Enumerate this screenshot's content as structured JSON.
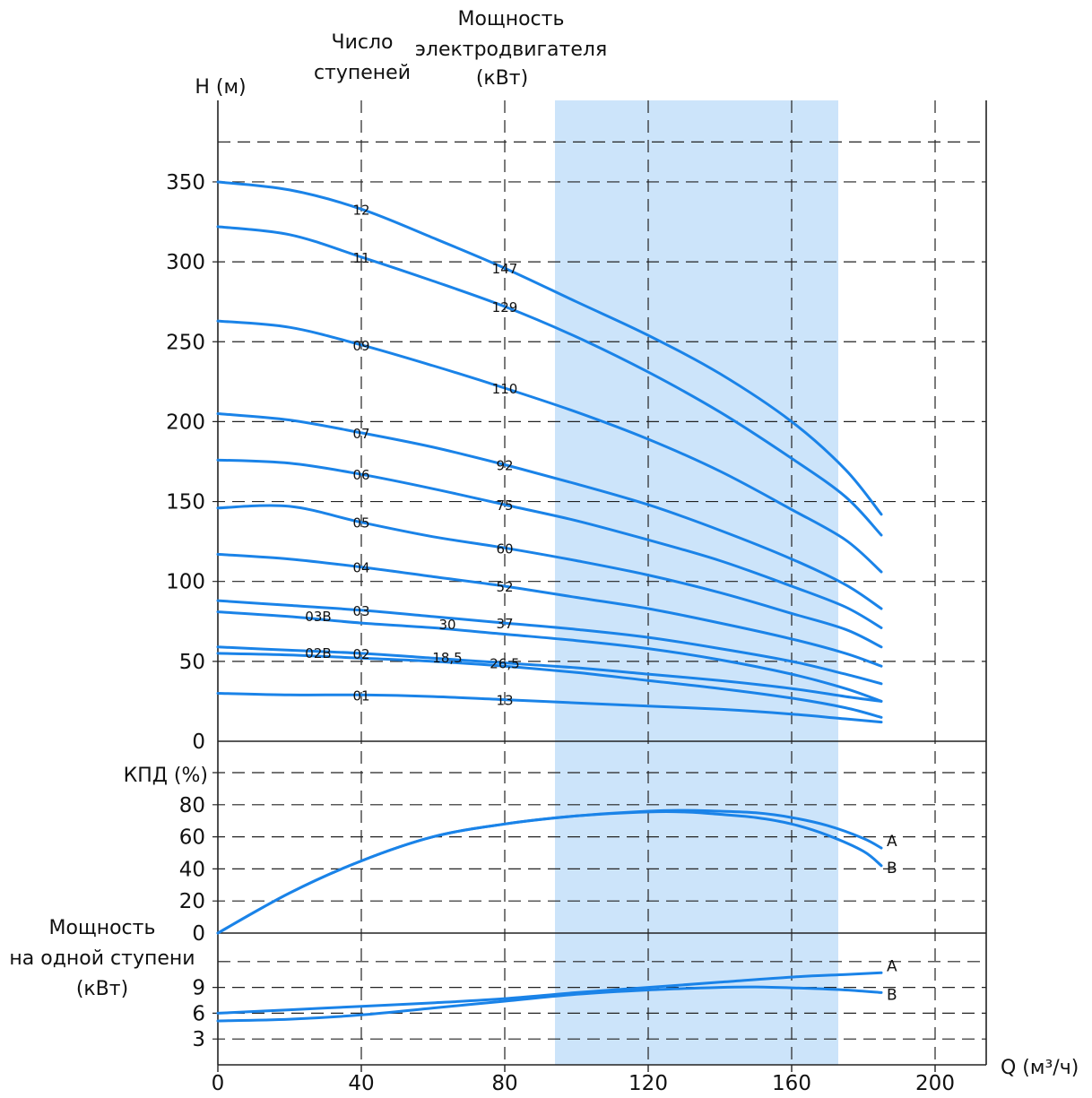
{
  "chart_data": {
    "type": "line",
    "header": {
      "stages_title": [
        "Число",
        "ступеней"
      ],
      "power_title": [
        "Мощность",
        "электродвигателя",
        "(кВт)"
      ]
    },
    "x_axis": {
      "label": "Q (м³/ч)",
      "range": [
        0,
        215
      ],
      "ticks": [
        0,
        40,
        80,
        120,
        160,
        200
      ],
      "tick_labels": [
        "0",
        "40",
        "80",
        "120",
        "160",
        "200"
      ]
    },
    "recommended_range": [
      94,
      173
    ],
    "colors": {
      "curve": "#1a83e8",
      "band": "#cce4fa"
    },
    "panels": [
      {
        "id": "head",
        "ylabel": "H (м)",
        "yrange": [
          0,
          400
        ],
        "ticks": [
          0,
          50,
          100,
          150,
          200,
          250,
          300,
          350
        ],
        "tick_labels": [
          "0",
          "50",
          "100",
          "150",
          "200",
          "250",
          "300",
          "350"
        ],
        "series": [
          {
            "stages": "12",
            "power": "147",
            "points": [
              [
                0,
                350
              ],
              [
                20,
                345
              ],
              [
                40,
                333
              ],
              [
                60,
                315
              ],
              [
                80,
                296
              ],
              [
                100,
                275
              ],
              [
                120,
                254
              ],
              [
                140,
                230
              ],
              [
                160,
                200
              ],
              [
                175,
                170
              ],
              [
                185,
                142
              ]
            ]
          },
          {
            "stages": "11",
            "power": "129",
            "points": [
              [
                0,
                322
              ],
              [
                20,
                317
              ],
              [
                40,
                303
              ],
              [
                60,
                288
              ],
              [
                80,
                272
              ],
              [
                100,
                253
              ],
              [
                120,
                231
              ],
              [
                140,
                206
              ],
              [
                160,
                177
              ],
              [
                175,
                153
              ],
              [
                185,
                129
              ]
            ]
          },
          {
            "stages": "09",
            "power": "110",
            "points": [
              [
                0,
                263
              ],
              [
                20,
                259
              ],
              [
                40,
                248
              ],
              [
                60,
                235
              ],
              [
                80,
                221
              ],
              [
                100,
                206
              ],
              [
                120,
                189
              ],
              [
                140,
                169
              ],
              [
                160,
                145
              ],
              [
                175,
                126
              ],
              [
                185,
                106
              ]
            ]
          },
          {
            "stages": "07",
            "power": "92",
            "points": [
              [
                0,
                205
              ],
              [
                20,
                201
              ],
              [
                40,
                193
              ],
              [
                60,
                184
              ],
              [
                80,
                173
              ],
              [
                100,
                161
              ],
              [
                120,
                148
              ],
              [
                140,
                132
              ],
              [
                160,
                114
              ],
              [
                175,
                98
              ],
              [
                185,
                83
              ]
            ]
          },
          {
            "stages": "06",
            "power": "75",
            "points": [
              [
                0,
                176
              ],
              [
                20,
                174
              ],
              [
                40,
                167
              ],
              [
                60,
                158
              ],
              [
                80,
                148
              ],
              [
                100,
                138
              ],
              [
                120,
                126
              ],
              [
                140,
                113
              ],
              [
                160,
                97
              ],
              [
                175,
                84
              ],
              [
                185,
                71
              ]
            ]
          },
          {
            "stages": "05",
            "power": "60",
            "points": [
              [
                0,
                146
              ],
              [
                20,
                147
              ],
              [
                40,
                137
              ],
              [
                60,
                128
              ],
              [
                80,
                121
              ],
              [
                100,
                113
              ],
              [
                120,
                104
              ],
              [
                140,
                93
              ],
              [
                160,
                80
              ],
              [
                175,
                70
              ],
              [
                185,
                59
              ]
            ]
          },
          {
            "stages": "04",
            "power": "52",
            "points": [
              [
                0,
                117
              ],
              [
                20,
                114
              ],
              [
                40,
                109
              ],
              [
                60,
                103
              ],
              [
                80,
                97
              ],
              [
                100,
                90
              ],
              [
                120,
                83
              ],
              [
                140,
                74
              ],
              [
                160,
                64
              ],
              [
                175,
                55
              ],
              [
                185,
                47
              ]
            ]
          },
          {
            "stages": "03",
            "power": "37",
            "points": [
              [
                0,
                88
              ],
              [
                20,
                85
              ],
              [
                40,
                82
              ],
              [
                60,
                78
              ],
              [
                80,
                74
              ],
              [
                100,
                70
              ],
              [
                120,
                65
              ],
              [
                140,
                58
              ],
              [
                160,
                50
              ],
              [
                175,
                42
              ],
              [
                185,
                36
              ]
            ]
          },
          {
            "stages": "03В",
            "power": "30",
            "points": [
              [
                0,
                81
              ],
              [
                20,
                78
              ],
              [
                40,
                74
              ],
              [
                60,
                71
              ],
              [
                80,
                67
              ],
              [
                100,
                63
              ],
              [
                120,
                58
              ],
              [
                140,
                51
              ],
              [
                160,
                42
              ],
              [
                175,
                33
              ],
              [
                185,
                25
              ]
            ]
          },
          {
            "stages": "02",
            "power": "26,5",
            "points": [
              [
                0,
                59
              ],
              [
                20,
                57
              ],
              [
                40,
                55
              ],
              [
                60,
                52
              ],
              [
                80,
                49
              ],
              [
                100,
                46
              ],
              [
                120,
                42
              ],
              [
                140,
                38
              ],
              [
                160,
                33
              ],
              [
                175,
                28
              ],
              [
                185,
                25
              ]
            ]
          },
          {
            "stages": "02В",
            "power": "18,5",
            "points": [
              [
                0,
                55
              ],
              [
                20,
                54
              ],
              [
                40,
                52
              ],
              [
                60,
                50
              ],
              [
                80,
                47
              ],
              [
                100,
                43
              ],
              [
                120,
                38
              ],
              [
                140,
                33
              ],
              [
                160,
                27
              ],
              [
                175,
                21
              ],
              [
                185,
                15
              ]
            ]
          },
          {
            "stages": "01",
            "power": "13",
            "points": [
              [
                0,
                30
              ],
              [
                20,
                29
              ],
              [
                40,
                29
              ],
              [
                60,
                28
              ],
              [
                80,
                26
              ],
              [
                100,
                24
              ],
              [
                120,
                22
              ],
              [
                140,
                20
              ],
              [
                160,
                17
              ],
              [
                175,
                14
              ],
              [
                185,
                12
              ]
            ]
          }
        ]
      },
      {
        "id": "efficiency",
        "ylabel": "КПД (%)",
        "yrange": [
          0,
          110
        ],
        "ticks": [
          0,
          20,
          40,
          60,
          80
        ],
        "tick_labels": [
          "0",
          "20",
          "40",
          "60",
          "80"
        ],
        "series": [
          {
            "name": "A",
            "points": [
              [
                0,
                0
              ],
              [
                20,
                25
              ],
              [
                40,
                45
              ],
              [
                60,
                60
              ],
              [
                80,
                68
              ],
              [
                100,
                73
              ],
              [
                120,
                76
              ],
              [
                130,
                76.5
              ],
              [
                140,
                76
              ],
              [
                150,
                75
              ],
              [
                160,
                72
              ],
              [
                170,
                67
              ],
              [
                180,
                59
              ],
              [
                185,
                53
              ]
            ]
          },
          {
            "name": "B",
            "points": [
              [
                0,
                0
              ],
              [
                20,
                25
              ],
              [
                40,
                45
              ],
              [
                60,
                60
              ],
              [
                80,
                68
              ],
              [
                100,
                73
              ],
              [
                120,
                75.5
              ],
              [
                130,
                75.5
              ],
              [
                140,
                74
              ],
              [
                150,
                72
              ],
              [
                160,
                68
              ],
              [
                170,
                61
              ],
              [
                180,
                51
              ],
              [
                185,
                42
              ]
            ]
          }
        ]
      },
      {
        "id": "stage_power",
        "ylabel": [
          "Мощность",
          "на одной ступени",
          "(кВт)"
        ],
        "yrange": [
          0,
          13.5
        ],
        "ticks": [
          3,
          6,
          9
        ],
        "tick_labels": [
          "3",
          "6",
          "9"
        ],
        "series": [
          {
            "name": "A",
            "points": [
              [
                0,
                6
              ],
              [
                20,
                6.4
              ],
              [
                40,
                6.8
              ],
              [
                60,
                7.2
              ],
              [
                80,
                7.7
              ],
              [
                100,
                8.4
              ],
              [
                120,
                9
              ],
              [
                140,
                9.6
              ],
              [
                160,
                10.2
              ],
              [
                175,
                10.5
              ],
              [
                185,
                10.7
              ]
            ]
          },
          {
            "name": "B",
            "points": [
              [
                0,
                5.1
              ],
              [
                20,
                5.3
              ],
              [
                40,
                5.8
              ],
              [
                60,
                6.6
              ],
              [
                80,
                7.4
              ],
              [
                100,
                8.2
              ],
              [
                120,
                8.7
              ],
              [
                140,
                9
              ],
              [
                150,
                9.05
              ],
              [
                160,
                8.95
              ],
              [
                175,
                8.7
              ],
              [
                185,
                8.4
              ]
            ]
          }
        ]
      }
    ]
  }
}
